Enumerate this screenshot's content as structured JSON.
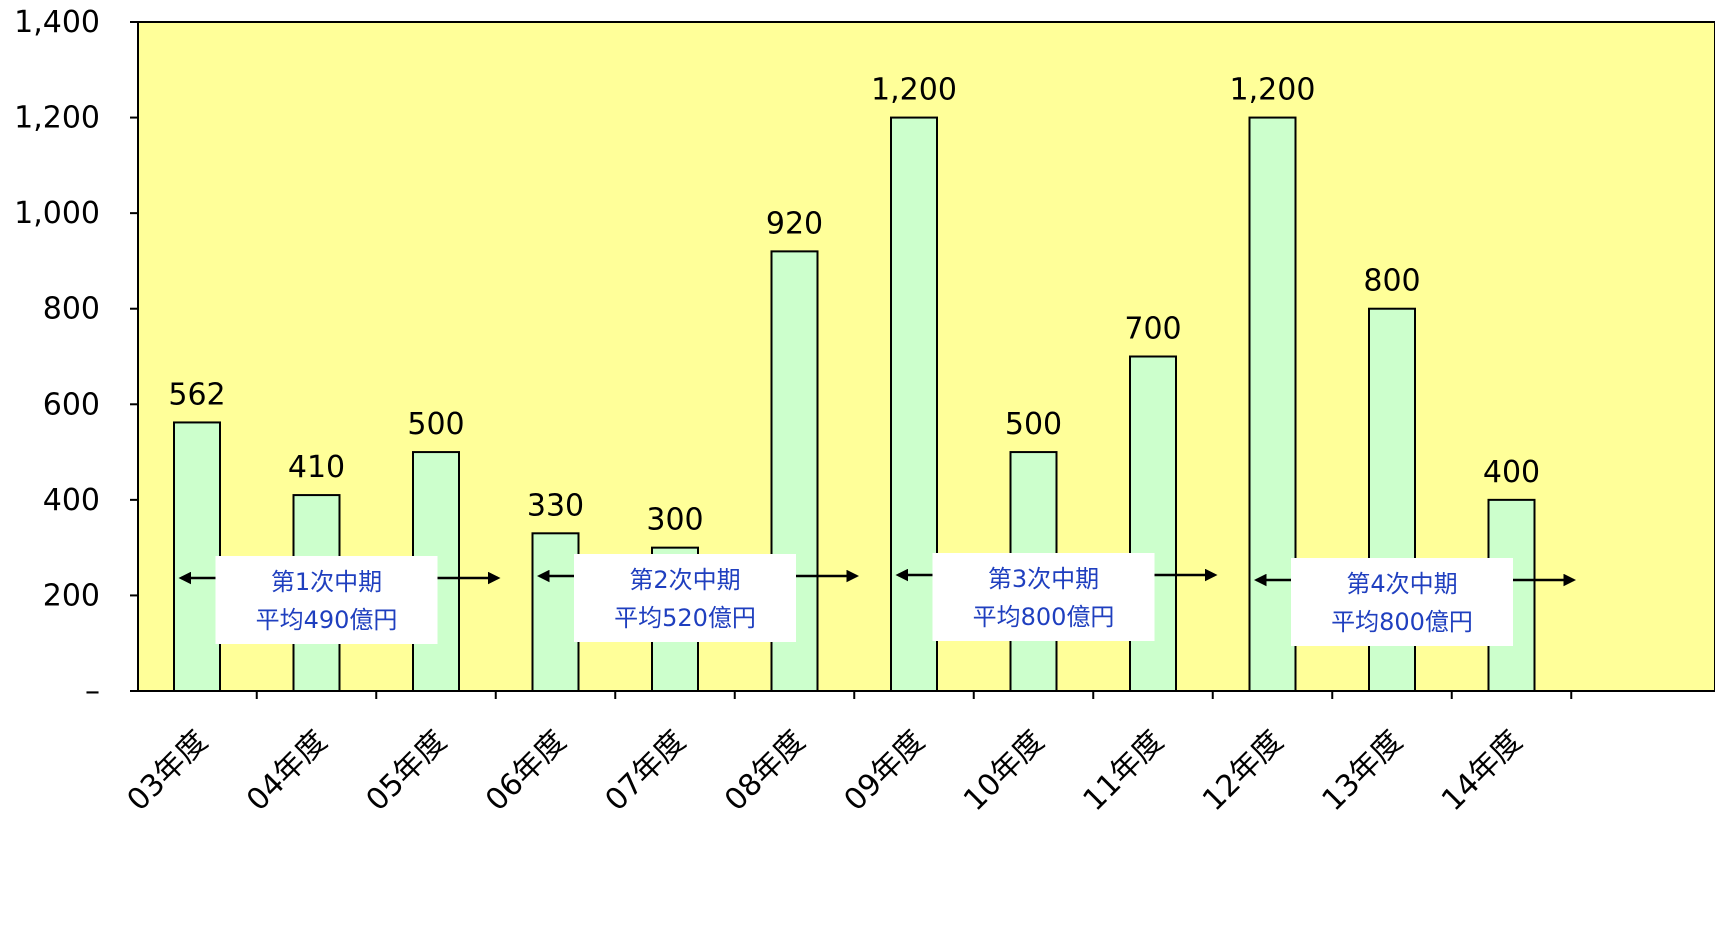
{
  "chart_data": {
    "type": "bar",
    "categories": [
      "03年度",
      "04年度",
      "05年度",
      "06年度",
      "07年度",
      "08年度",
      "09年度",
      "10年度",
      "11年度",
      "12年度",
      "13年度",
      "14年度"
    ],
    "values": [
      562,
      410,
      500,
      330,
      300,
      920,
      1200,
      500,
      700,
      1200,
      800,
      400
    ],
    "data_labels": [
      "562",
      "410",
      "500",
      "330",
      "300",
      "920",
      "1,200",
      "500",
      "700",
      "1,200",
      "800",
      "400"
    ],
    "ylim": [
      0,
      1400
    ],
    "yticks": [
      0,
      200,
      400,
      600,
      800,
      1000,
      1200,
      1400
    ],
    "ytick_labels": [
      "–",
      "200",
      "400",
      "600",
      "800",
      "1,000",
      "1,200",
      "1,400"
    ],
    "title": "",
    "xlabel": "",
    "ylabel": "",
    "grid": false,
    "legend": "none",
    "annotations": [
      {
        "line1": "第1次中期",
        "line2": "平均490億円",
        "from_category": 0,
        "to_category": 2
      },
      {
        "line1": "第2次中期",
        "line2": "平均520億円",
        "from_category": 3,
        "to_category": 5
      },
      {
        "line1": "第3次中期",
        "line2": "平均800億円",
        "from_category": 6,
        "to_category": 8
      },
      {
        "line1": "第4次中期",
        "line2": "平均800億円",
        "from_category": 9,
        "to_category": 11
      }
    ]
  },
  "colors": {
    "plot_background": "#ffff99",
    "bar_fill": "#ccffcc",
    "bar_stroke": "#000000",
    "annotation_text": "#1f3fbf",
    "annotation_box": "#ffffff"
  }
}
